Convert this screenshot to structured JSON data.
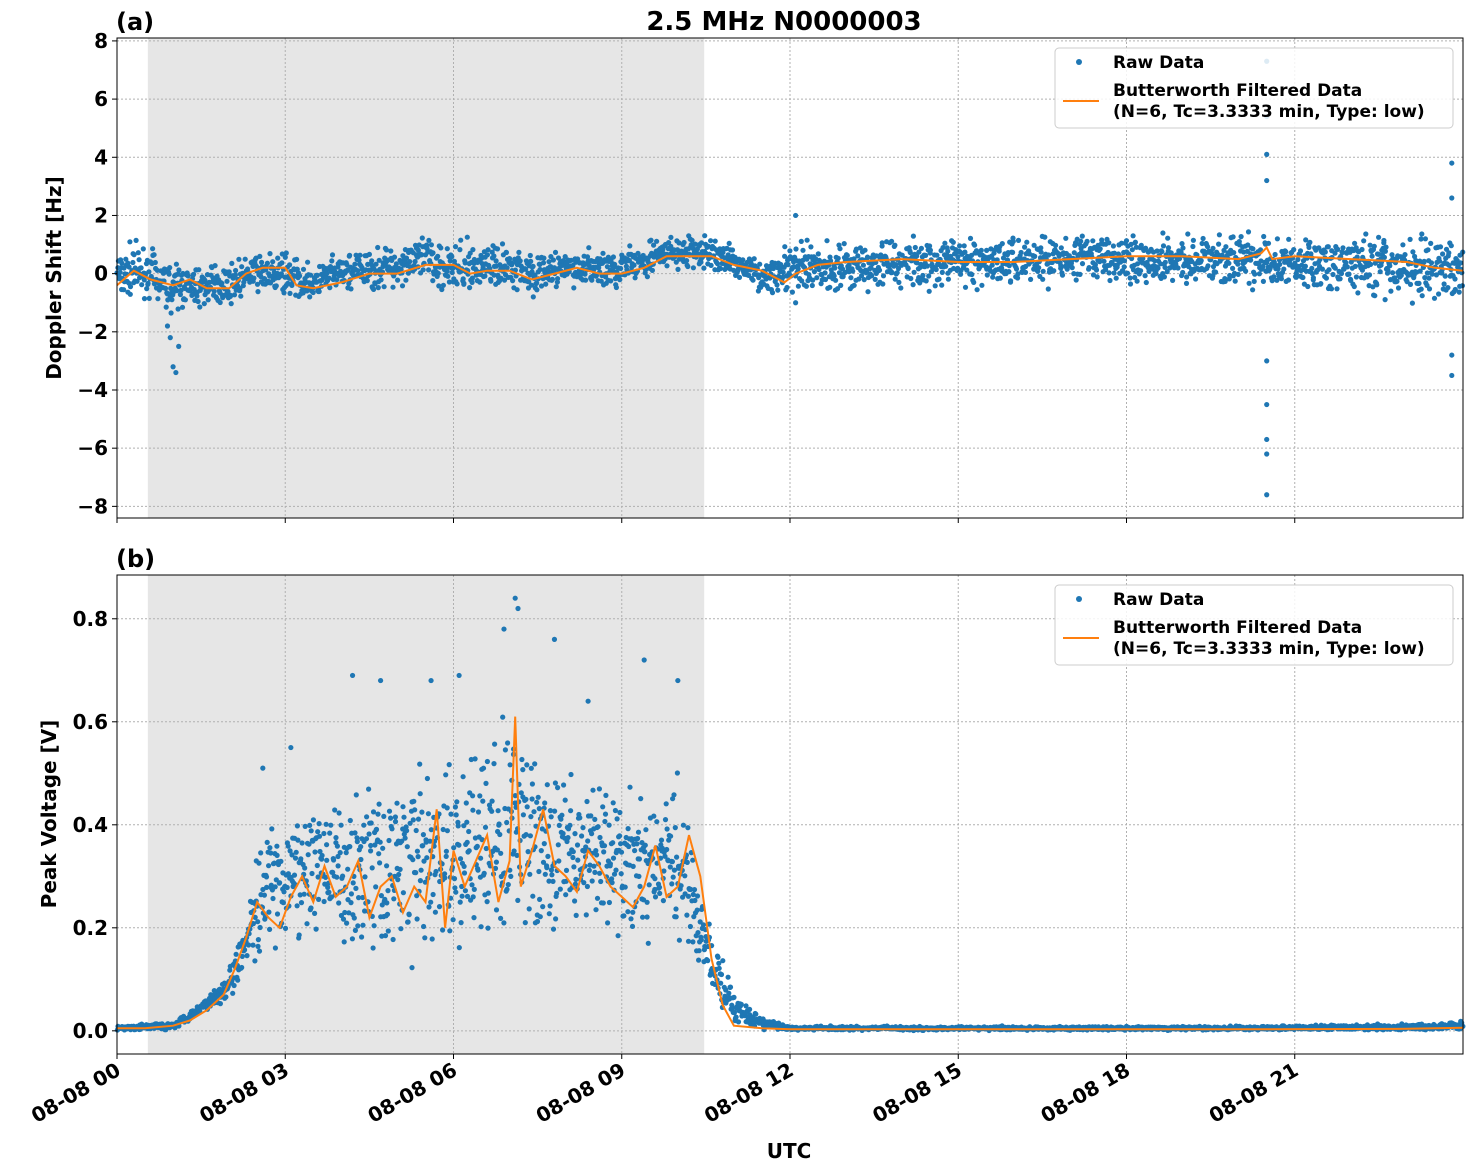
{
  "figure": {
    "title": "2.5 MHz N0000003",
    "xlabel": "UTC",
    "colors": {
      "raw": "#1f77b4",
      "filtered": "#ff7f0e",
      "shade": "#e6e6e6",
      "grid": "#b0b0b0"
    }
  },
  "chart_data": [
    {
      "type": "scatter",
      "panel_label": "(a)",
      "ylabel": "Doppler Shift [Hz]",
      "xlim_hours": [
        0,
        24
      ],
      "ylim": [
        -8.4,
        8.1
      ],
      "x_ticks": [
        0,
        3,
        6,
        9,
        12,
        15,
        18,
        21
      ],
      "x_tick_labels": [
        "08-08 00",
        "08-08 03",
        "08-08 06",
        "08-08 09",
        "08-08 12",
        "08-08 15",
        "08-08 18",
        "08-08 21"
      ],
      "y_ticks": [
        -8,
        -6,
        -4,
        -2,
        0,
        2,
        4,
        6,
        8
      ],
      "y_tick_labels": [
        "−8",
        "−6",
        "−4",
        "−2",
        "0",
        "2",
        "4",
        "6",
        "8"
      ],
      "grid": true,
      "legend_position": "top-right",
      "shaded_span_hours": [
        0.55,
        10.47
      ],
      "series": [
        {
          "name": "Raw Data",
          "kind": "scatter",
          "envelope_x": [
            0,
            0.5,
            1,
            1.5,
            2,
            2.5,
            3,
            3.5,
            4,
            4.5,
            5,
            5.5,
            6,
            6.5,
            7,
            7.5,
            8,
            8.5,
            9,
            9.5,
            10,
            10.5,
            11,
            11.5,
            12,
            12.5,
            13,
            14,
            15,
            16,
            17,
            18,
            19,
            20,
            20.5,
            21,
            22,
            23,
            24
          ],
          "envelope_lower": [
            -1.3,
            -1.0,
            -1.6,
            -1.3,
            -1.2,
            -0.8,
            -1.0,
            -1.1,
            -0.9,
            -0.8,
            -0.8,
            -0.6,
            -1.0,
            -0.8,
            -0.6,
            -1.0,
            -0.6,
            -0.7,
            -0.7,
            -0.3,
            -0.1,
            0.0,
            -0.3,
            -0.7,
            -1.1,
            -0.9,
            -1.0,
            -0.8,
            -0.8,
            -0.7,
            -0.6,
            -0.6,
            -0.6,
            -0.7,
            -0.8,
            -0.9,
            -1.0,
            -1.3,
            -1.2
          ],
          "envelope_upper": [
            1.5,
            1.2,
            0.7,
            0.4,
            0.5,
            0.9,
            0.9,
            0.4,
            1.0,
            1.0,
            1.4,
            1.6,
            1.4,
            1.3,
            1.2,
            1.0,
            1.0,
            1.0,
            1.0,
            1.4,
            1.5,
            1.4,
            1.2,
            0.5,
            1.3,
            1.4,
            1.5,
            1.6,
            1.6,
            1.6,
            1.6,
            1.6,
            1.6,
            1.6,
            1.5,
            1.5,
            1.6,
            1.7,
            1.6
          ],
          "outliers": [
            [
              0.9,
              -1.8
            ],
            [
              0.95,
              -2.2
            ],
            [
              1.0,
              -3.2
            ],
            [
              1.05,
              -3.4
            ],
            [
              1.1,
              -2.5
            ],
            [
              12.1,
              2.0
            ],
            [
              12.1,
              -1.0
            ],
            [
              20.5,
              4.1
            ],
            [
              20.5,
              3.2
            ],
            [
              20.5,
              5.4
            ],
            [
              20.5,
              7.3
            ],
            [
              20.5,
              -3.0
            ],
            [
              20.5,
              -4.5
            ],
            [
              20.5,
              -5.7
            ],
            [
              20.5,
              -6.2
            ],
            [
              20.5,
              -7.6
            ],
            [
              23.8,
              3.8
            ],
            [
              23.8,
              2.6
            ],
            [
              23.8,
              -3.5
            ],
            [
              23.8,
              -2.8
            ]
          ]
        },
        {
          "name": "Butterworth Filtered Data\n(N=6, Tc=3.3333 min, Type: low)",
          "kind": "line",
          "x": [
            0,
            0.3,
            0.6,
            1.0,
            1.3,
            1.6,
            2.0,
            2.3,
            2.6,
            3.0,
            3.2,
            3.5,
            4.0,
            4.5,
            5.0,
            5.5,
            6.0,
            6.3,
            6.6,
            7.0,
            7.4,
            7.8,
            8.2,
            8.6,
            9.0,
            9.4,
            9.8,
            10.2,
            10.6,
            11.0,
            11.5,
            11.9,
            12.1,
            12.5,
            13,
            14,
            15,
            16,
            17,
            18,
            19,
            20,
            20.4,
            20.5,
            20.6,
            21,
            22,
            23,
            23.5,
            24
          ],
          "y": [
            -0.4,
            0.1,
            -0.2,
            -0.4,
            -0.2,
            -0.5,
            -0.5,
            0.0,
            0.2,
            0.2,
            -0.4,
            -0.5,
            -0.3,
            0.0,
            0.0,
            0.3,
            0.3,
            0.0,
            0.1,
            0.1,
            -0.2,
            0.0,
            0.2,
            0.0,
            0.0,
            0.2,
            0.6,
            0.6,
            0.6,
            0.3,
            0.1,
            -0.3,
            0.0,
            0.3,
            0.4,
            0.5,
            0.4,
            0.4,
            0.5,
            0.6,
            0.6,
            0.5,
            0.7,
            0.9,
            0.5,
            0.6,
            0.5,
            0.4,
            0.2,
            0.1
          ]
        }
      ]
    },
    {
      "type": "scatter",
      "panel_label": "(b)",
      "ylabel": "Peak Voltage [V]",
      "xlim_hours": [
        0,
        24
      ],
      "ylim": [
        -0.045,
        0.885
      ],
      "x_ticks": [
        0,
        3,
        6,
        9,
        12,
        15,
        18,
        21
      ],
      "x_tick_labels": [
        "08-08 00",
        "08-08 03",
        "08-08 06",
        "08-08 09",
        "08-08 12",
        "08-08 15",
        "08-08 18",
        "08-08 21"
      ],
      "y_ticks": [
        0.0,
        0.2,
        0.4,
        0.6,
        0.8
      ],
      "y_tick_labels": [
        "0.0",
        "0.2",
        "0.4",
        "0.6",
        "0.8"
      ],
      "grid": true,
      "legend_position": "top-right",
      "shaded_span_hours": [
        0.55,
        10.47
      ],
      "series": [
        {
          "name": "Raw Data",
          "kind": "scatter",
          "envelope_x": [
            0,
            1,
            1.5,
            2.0,
            2.3,
            2.6,
            3.0,
            3.5,
            4.0,
            4.5,
            5.0,
            5.5,
            6.0,
            6.5,
            7.0,
            7.5,
            8.0,
            8.5,
            9.0,
            9.5,
            10.0,
            10.3,
            10.6,
            11.0,
            11.5,
            12,
            16,
            20,
            23,
            24
          ],
          "envelope_lower": [
            0.0,
            0.0,
            0.03,
            0.05,
            0.08,
            0.11,
            0.12,
            0.12,
            0.11,
            0.1,
            0.1,
            0.1,
            0.1,
            0.12,
            0.11,
            0.12,
            0.14,
            0.16,
            0.14,
            0.12,
            0.12,
            0.1,
            0.05,
            0.01,
            0.0,
            0.0,
            0.0,
            0.0,
            0.0,
            0.0
          ],
          "envelope_upper": [
            0.01,
            0.02,
            0.06,
            0.13,
            0.28,
            0.4,
            0.45,
            0.5,
            0.52,
            0.55,
            0.55,
            0.58,
            0.58,
            0.6,
            0.68,
            0.62,
            0.55,
            0.52,
            0.5,
            0.52,
            0.55,
            0.4,
            0.2,
            0.08,
            0.03,
            0.01,
            0.01,
            0.01,
            0.015,
            0.02
          ],
          "outliers": [
            [
              2.6,
              0.51
            ],
            [
              3.1,
              0.55
            ],
            [
              4.2,
              0.69
            ],
            [
              4.7,
              0.68
            ],
            [
              5.6,
              0.68
            ],
            [
              6.1,
              0.69
            ],
            [
              6.9,
              0.78
            ],
            [
              7.1,
              0.84
            ],
            [
              7.15,
              0.82
            ],
            [
              7.8,
              0.76
            ],
            [
              8.4,
              0.64
            ],
            [
              9.4,
              0.72
            ],
            [
              10.0,
              0.68
            ]
          ]
        },
        {
          "name": "Butterworth Filtered Data\n(N=6, Tc=3.3333 min, Type: low)",
          "kind": "line",
          "x": [
            0,
            0.5,
            1.0,
            1.3,
            1.6,
            1.9,
            2.1,
            2.3,
            2.5,
            2.7,
            2.9,
            3.1,
            3.3,
            3.5,
            3.7,
            3.9,
            4.1,
            4.3,
            4.5,
            4.7,
            4.9,
            5.1,
            5.3,
            5.5,
            5.7,
            5.85,
            6.0,
            6.2,
            6.4,
            6.6,
            6.8,
            7.0,
            7.1,
            7.2,
            7.4,
            7.6,
            7.8,
            8.0,
            8.2,
            8.4,
            8.6,
            8.8,
            9.0,
            9.2,
            9.4,
            9.6,
            9.8,
            10.0,
            10.2,
            10.4,
            10.6,
            10.8,
            11.0,
            11.5,
            12,
            16,
            20,
            23,
            24
          ],
          "y": [
            0.005,
            0.005,
            0.01,
            0.02,
            0.04,
            0.07,
            0.12,
            0.18,
            0.25,
            0.22,
            0.2,
            0.26,
            0.3,
            0.25,
            0.32,
            0.26,
            0.28,
            0.33,
            0.22,
            0.28,
            0.3,
            0.23,
            0.28,
            0.25,
            0.43,
            0.2,
            0.35,
            0.28,
            0.33,
            0.38,
            0.25,
            0.33,
            0.61,
            0.28,
            0.35,
            0.43,
            0.32,
            0.3,
            0.27,
            0.35,
            0.32,
            0.28,
            0.26,
            0.24,
            0.28,
            0.36,
            0.26,
            0.28,
            0.38,
            0.3,
            0.14,
            0.05,
            0.01,
            0.005,
            0.003,
            0.003,
            0.003,
            0.004,
            0.006
          ]
        }
      ]
    }
  ]
}
